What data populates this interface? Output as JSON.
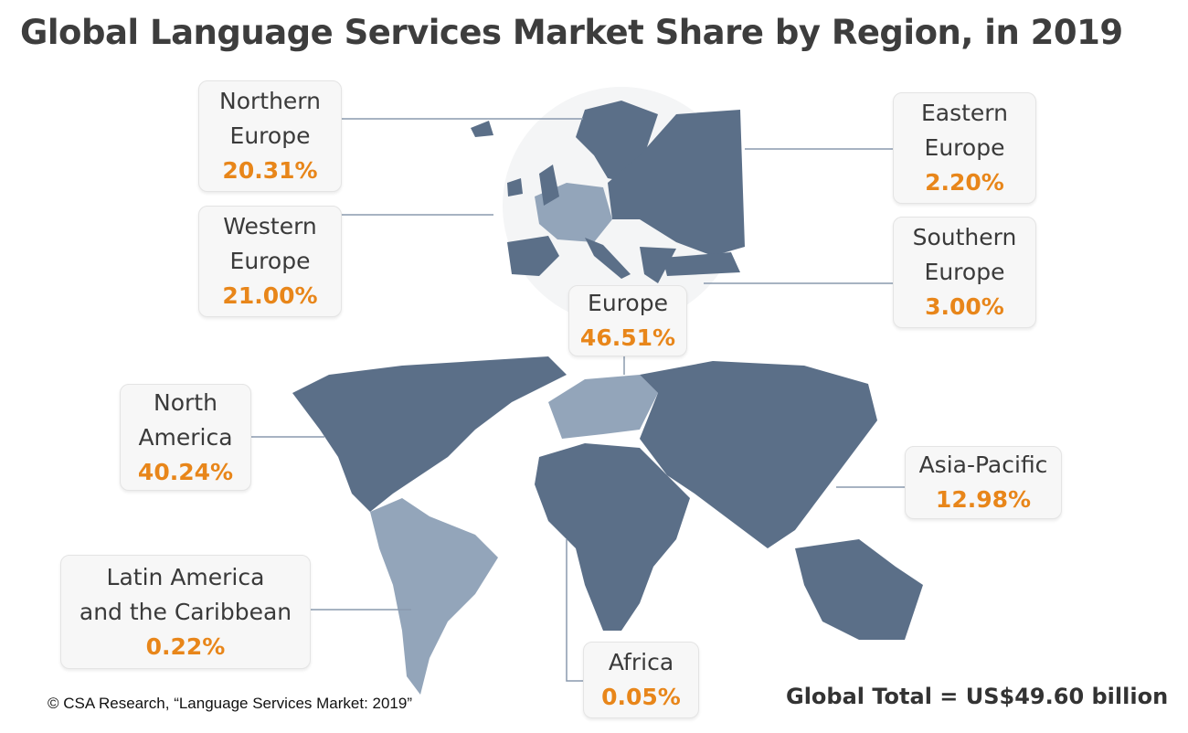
{
  "title": "Global Language Services Market Share by Region, in 2019",
  "colors": {
    "map_dark": "#5b6f88",
    "map_light": "#93a5ba",
    "percent": "#e8861a",
    "leader": "#8a9aae"
  },
  "regions": {
    "northern_europe": {
      "name_1": "Northern",
      "name_2": "Europe",
      "share": "20.31%"
    },
    "western_europe": {
      "name_1": "Western",
      "name_2": "Europe",
      "share": "21.00%"
    },
    "eastern_europe": {
      "name_1": "Eastern",
      "name_2": "Europe",
      "share": "2.20%"
    },
    "southern_europe": {
      "name_1": "Southern",
      "name_2": "Europe",
      "share": "3.00%"
    },
    "europe": {
      "name_1": "Europe",
      "share": "46.51%"
    },
    "north_america": {
      "name_1": "North",
      "name_2": "America",
      "share": "40.24%"
    },
    "asia_pacific": {
      "name_1": "Asia-Pacific",
      "share": "12.98%"
    },
    "latin_america": {
      "name_1": "Latin America",
      "name_2": "and the Caribbean",
      "share": "0.22%"
    },
    "africa": {
      "name_1": "Africa",
      "share": "0.05%"
    }
  },
  "global_total": "Global Total = US$49.60 billion",
  "credit": "© CSA Research, “Language Services Market: 2019”"
}
